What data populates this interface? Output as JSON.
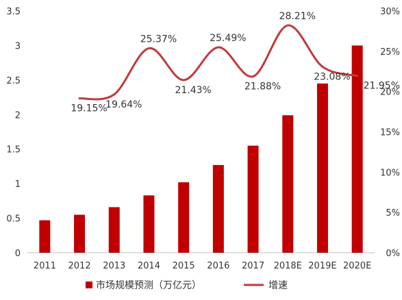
{
  "chart_data": {
    "type": "bar",
    "title": "",
    "xlabel": "",
    "ylabel": "",
    "categories": [
      "2011",
      "2012",
      "2013",
      "2014",
      "2015",
      "2016",
      "2017",
      "2018E",
      "2019E",
      "2020E"
    ],
    "series": [
      {
        "name": "市场规模预测（万亿元）",
        "type": "bar",
        "axis": "left",
        "color": "#C00000",
        "values": [
          0.47,
          0.55,
          0.66,
          0.83,
          1.02,
          1.27,
          1.55,
          1.99,
          2.45,
          3.0
        ]
      },
      {
        "name": "增速",
        "type": "line",
        "axis": "right",
        "color": "#C0393B",
        "values": [
          null,
          19.15,
          19.64,
          25.37,
          21.43,
          25.49,
          21.88,
          28.21,
          23.08,
          21.95
        ],
        "labels": [
          "",
          "19.15%",
          "19.64%",
          "25.37%",
          "21.43%",
          "25.49%",
          "21.88%",
          "28.21%",
          "23.08%",
          "21.95%"
        ]
      }
    ],
    "y_left": {
      "range": [
        0,
        3.5
      ],
      "ticks": [
        0,
        0.5,
        1,
        1.5,
        2,
        2.5,
        3,
        3.5
      ],
      "tick_labels": [
        "0",
        "0.5",
        "1",
        "1.5",
        "2",
        "2.5",
        "3",
        "3.5"
      ]
    },
    "y_right": {
      "range": [
        0,
        30
      ],
      "ticks": [
        0,
        5,
        10,
        15,
        20,
        25,
        30
      ],
      "tick_labels": [
        "0%",
        "5%",
        "10%",
        "15%",
        "20%",
        "25%",
        "30%"
      ]
    },
    "grid": false,
    "legend_position": "bottom"
  }
}
